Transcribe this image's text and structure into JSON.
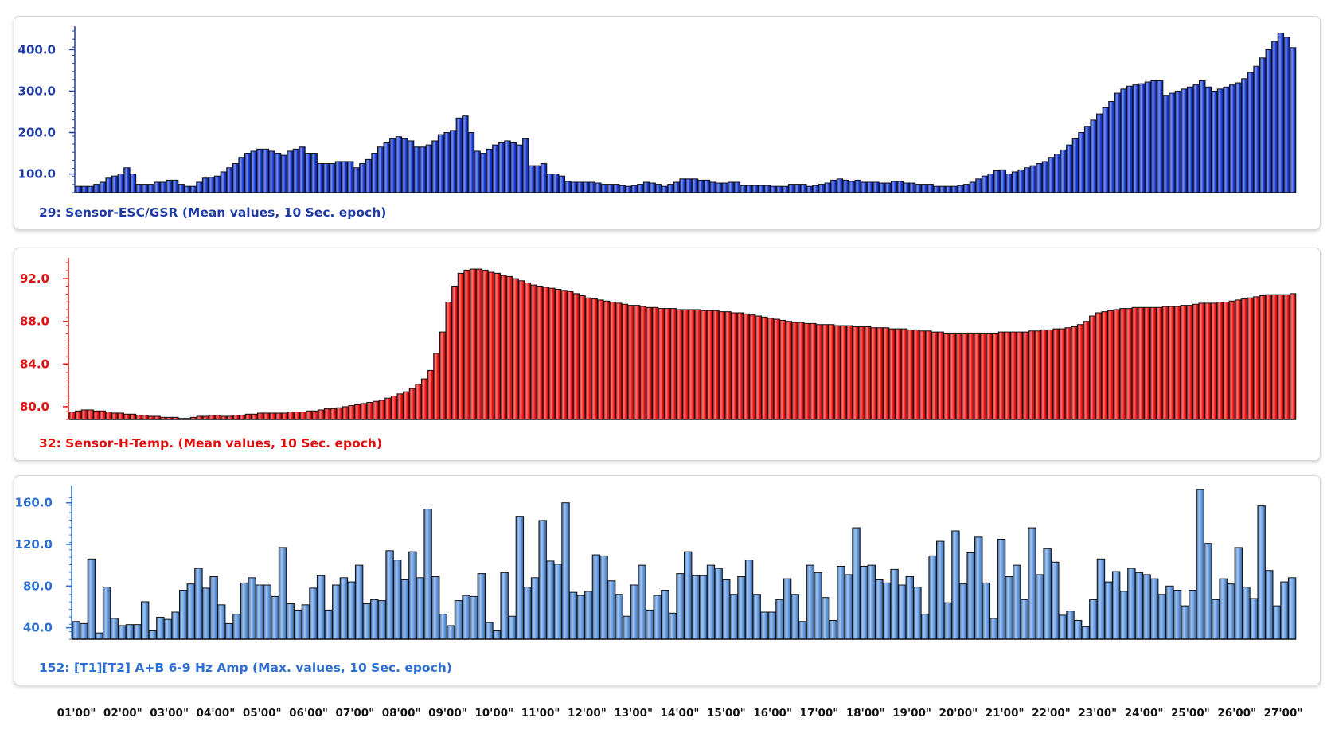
{
  "time_axis": {
    "labels": [
      "01'00\"",
      "02'00\"",
      "03'00\"",
      "04'00\"",
      "05'00\"",
      "06'00\"",
      "07'00\"",
      "08'00\"",
      "09'00\"",
      "10'00\"",
      "11'00\"",
      "12'00\"",
      "13'00\"",
      "14'00\"",
      "15'00\"",
      "16'00\"",
      "17'00\"",
      "18'00\"",
      "19'00\"",
      "20'00\"",
      "21'00\"",
      "22'00\"",
      "23'00\"",
      "24'00\"",
      "25'00\"",
      "26'00\"",
      "27'00\""
    ]
  },
  "chart_data": [
    {
      "type": "bar",
      "title": "29:  Sensor-ESC/GSR (Mean values, 10 Sec. epoch)",
      "color": "#1538d6",
      "label_color": "#1f3aa3",
      "ylim": [
        55,
        445
      ],
      "yticks": [
        "100.0",
        "200.0",
        "300.0",
        "400.0"
      ],
      "values": [
        70,
        70,
        70,
        75,
        80,
        90,
        95,
        100,
        115,
        100,
        75,
        75,
        75,
        80,
        80,
        85,
        85,
        75,
        70,
        70,
        80,
        90,
        92,
        95,
        105,
        115,
        125,
        140,
        150,
        155,
        160,
        160,
        155,
        150,
        145,
        155,
        160,
        165,
        150,
        150,
        125,
        125,
        125,
        130,
        130,
        130,
        115,
        125,
        135,
        150,
        165,
        175,
        185,
        190,
        185,
        180,
        165,
        165,
        170,
        180,
        195,
        200,
        205,
        235,
        240,
        200,
        155,
        150,
        160,
        170,
        175,
        180,
        175,
        170,
        185,
        120,
        120,
        125,
        100,
        100,
        95,
        82,
        80,
        80,
        80,
        80,
        78,
        75,
        75,
        75,
        72,
        70,
        72,
        75,
        80,
        78,
        75,
        70,
        75,
        80,
        88,
        88,
        88,
        85,
        85,
        80,
        78,
        78,
        80,
        80,
        72,
        72,
        72,
        72,
        72,
        70,
        70,
        70,
        75,
        75,
        75,
        70,
        72,
        75,
        78,
        85,
        88,
        85,
        82,
        85,
        80,
        80,
        80,
        78,
        78,
        82,
        82,
        78,
        78,
        75,
        75,
        75,
        70,
        70,
        70,
        70,
        72,
        75,
        80,
        88,
        95,
        100,
        108,
        110,
        100,
        105,
        110,
        115,
        120,
        125,
        130,
        140,
        148,
        158,
        170,
        185,
        200,
        215,
        230,
        245,
        260,
        275,
        295,
        305,
        312,
        315,
        318,
        322,
        325,
        325,
        290,
        295,
        300,
        305,
        310,
        315,
        325,
        310,
        300,
        305,
        310,
        315,
        320,
        330,
        345,
        360,
        380,
        400,
        420,
        440,
        430,
        405
      ]
    },
    {
      "type": "bar",
      "title": "32:  Sensor-H-Temp. (Mean values, 10 Sec. epoch)",
      "color": "#f01010",
      "label_color": "#e01010",
      "ylim": [
        78.8,
        93.5
      ],
      "yticks": [
        "80.0",
        "84.0",
        "88.0",
        "92.0"
      ],
      "values": [
        79.5,
        79.6,
        79.7,
        79.7,
        79.6,
        79.6,
        79.5,
        79.4,
        79.4,
        79.3,
        79.3,
        79.2,
        79.2,
        79.1,
        79.1,
        79.0,
        79.0,
        79.0,
        78.9,
        78.9,
        79.0,
        79.1,
        79.1,
        79.2,
        79.2,
        79.1,
        79.1,
        79.2,
        79.2,
        79.3,
        79.3,
        79.4,
        79.4,
        79.4,
        79.4,
        79.4,
        79.5,
        79.5,
        79.5,
        79.6,
        79.6,
        79.7,
        79.8,
        79.8,
        79.9,
        80.0,
        80.1,
        80.2,
        80.3,
        80.4,
        80.5,
        80.6,
        80.8,
        81.0,
        81.2,
        81.4,
        81.7,
        82.1,
        82.6,
        83.4,
        85.0,
        87.0,
        89.8,
        91.3,
        92.5,
        92.8,
        92.9,
        92.9,
        92.8,
        92.6,
        92.5,
        92.3,
        92.2,
        92.0,
        91.8,
        91.6,
        91.4,
        91.3,
        91.2,
        91.1,
        91.0,
        90.9,
        90.8,
        90.6,
        90.4,
        90.2,
        90.1,
        90.0,
        89.9,
        89.8,
        89.7,
        89.6,
        89.5,
        89.5,
        89.4,
        89.3,
        89.3,
        89.2,
        89.2,
        89.2,
        89.1,
        89.1,
        89.1,
        89.1,
        89.0,
        89.0,
        89.0,
        88.9,
        88.9,
        88.8,
        88.8,
        88.7,
        88.6,
        88.5,
        88.4,
        88.3,
        88.2,
        88.1,
        88.0,
        87.9,
        87.9,
        87.8,
        87.8,
        87.7,
        87.7,
        87.7,
        87.6,
        87.6,
        87.6,
        87.5,
        87.5,
        87.5,
        87.4,
        87.4,
        87.4,
        87.3,
        87.3,
        87.3,
        87.2,
        87.2,
        87.1,
        87.1,
        87.0,
        87.0,
        86.9,
        86.9,
        86.9,
        86.9,
        86.9,
        86.9,
        86.9,
        86.9,
        86.9,
        87.0,
        87.0,
        87.0,
        87.0,
        87.0,
        87.1,
        87.1,
        87.2,
        87.2,
        87.3,
        87.3,
        87.4,
        87.5,
        87.7,
        88.0,
        88.5,
        88.8,
        88.9,
        89.0,
        89.1,
        89.2,
        89.2,
        89.3,
        89.3,
        89.3,
        89.3,
        89.3,
        89.4,
        89.4,
        89.4,
        89.5,
        89.5,
        89.6,
        89.7,
        89.7,
        89.7,
        89.8,
        89.8,
        89.9,
        90.0,
        90.1,
        90.2,
        90.3,
        90.4,
        90.5,
        90.5,
        90.5,
        90.5,
        90.6
      ]
    },
    {
      "type": "bar",
      "title": "152:  [T1][T2] A+B 6-9 Hz Amp (Max. values, 10 Sec. epoch)",
      "color": "#5c95e0",
      "label_color": "#2f6fd1",
      "ylim": [
        29,
        172
      ],
      "yticks": [
        "40.0",
        "80.0",
        "120.0",
        "160.0"
      ],
      "values": [
        46,
        44,
        106,
        35,
        79,
        49,
        42,
        43,
        43,
        65,
        37,
        50,
        48,
        55,
        76,
        82,
        97,
        78,
        89,
        62,
        44,
        53,
        83,
        88,
        81,
        81,
        70,
        117,
        63,
        57,
        62,
        78,
        90,
        57,
        81,
        88,
        84,
        100,
        63,
        67,
        66,
        114,
        105,
        86,
        113,
        88,
        154,
        89,
        53,
        42,
        66,
        71,
        70,
        92,
        45,
        37,
        93,
        51,
        147,
        79,
        88,
        143,
        104,
        101,
        160,
        74,
        71,
        75,
        110,
        109,
        85,
        72,
        51,
        81,
        100,
        57,
        71,
        76,
        54,
        92,
        113,
        90,
        90,
        100,
        97,
        86,
        72,
        89,
        105,
        72,
        55,
        55,
        67,
        87,
        72,
        46,
        100,
        93,
        69,
        47,
        99,
        91,
        136,
        99,
        100,
        86,
        83,
        96,
        81,
        89,
        79,
        53,
        109,
        123,
        64,
        133,
        82,
        112,
        127,
        83,
        49,
        125,
        89,
        100,
        67,
        136,
        91,
        116,
        103,
        52,
        56,
        47,
        41,
        67,
        106,
        84,
        94,
        75,
        97,
        93,
        91,
        87,
        72,
        80,
        76,
        61,
        76,
        173,
        121,
        67,
        87,
        82,
        117,
        79,
        68,
        157,
        95,
        61,
        84,
        88
      ]
    }
  ]
}
